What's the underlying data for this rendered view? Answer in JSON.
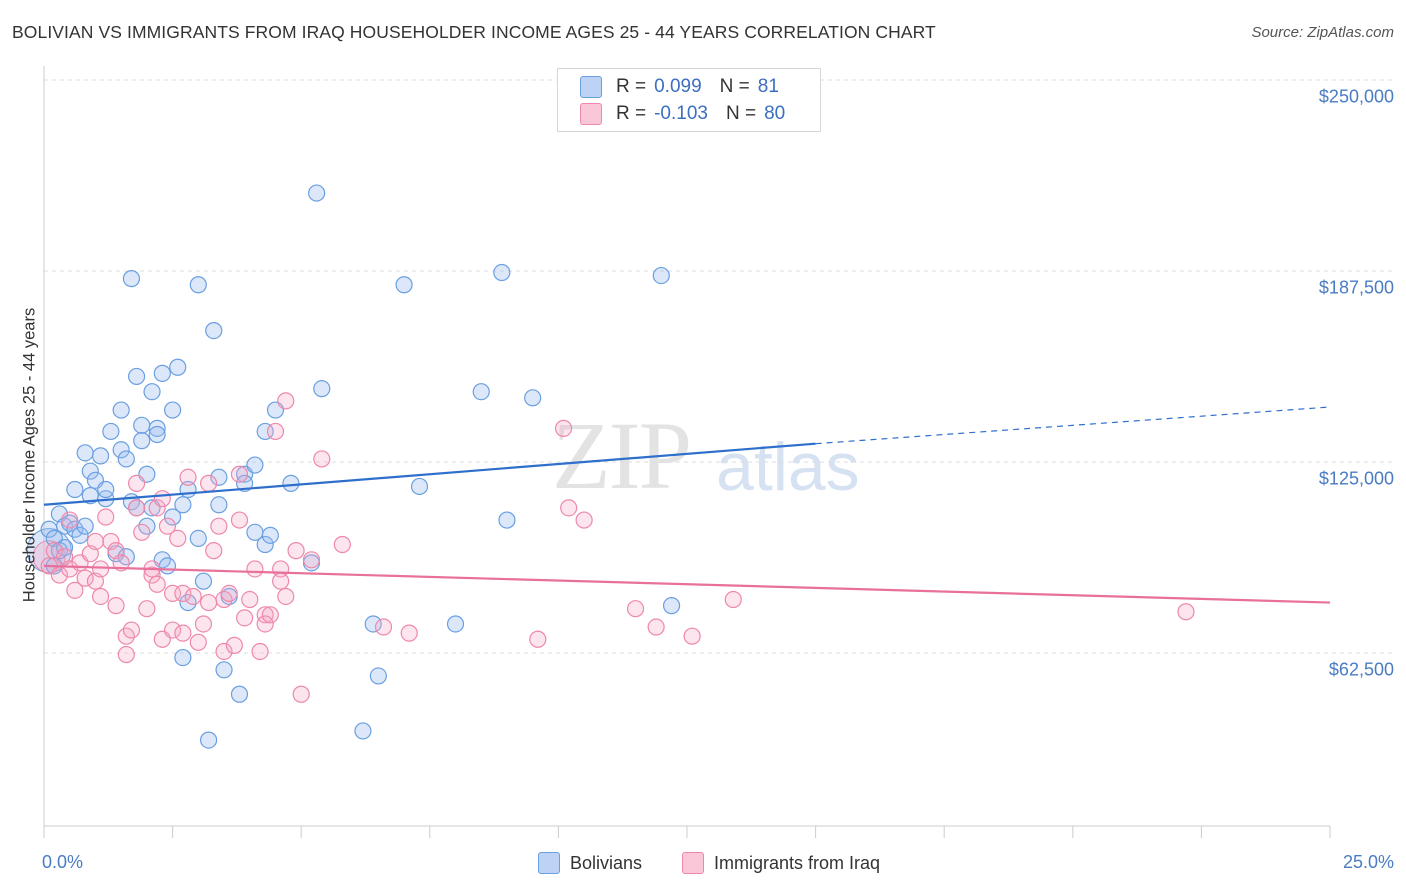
{
  "title": "BOLIVIAN VS IMMIGRANTS FROM IRAQ HOUSEHOLDER INCOME AGES 25 - 44 YEARS CORRELATION CHART",
  "source": "Source: ZipAtlas.com",
  "watermark": {
    "zip": "ZIP",
    "atlas": "atlas"
  },
  "legend": {
    "rows": [
      {
        "r_label": "R =",
        "r_value": "0.099",
        "n_label": "N =",
        "n_value": "81"
      },
      {
        "r_label": "R =",
        "r_value": "-0.103",
        "n_label": "N =",
        "n_value": "80"
      }
    ],
    "bottom": [
      "Bolivians",
      "Immigrants from Iraq"
    ]
  },
  "colors": {
    "blue": "#6a9fe0",
    "blue_line": "#2f6fcc",
    "pink": "#ee88aa",
    "pink_line": "#e8709a",
    "grid": "#dddddd"
  },
  "chart_data": {
    "type": "scatter",
    "title": "BOLIVIAN VS IMMIGRANTS FROM IRAQ HOUSEHOLDER INCOME AGES 25 - 44 YEARS CORRELATION CHART",
    "xlabel": "",
    "ylabel": "Householder Income Ages 25 - 44 years",
    "xlim": [
      0,
      25
    ],
    "ylim": [
      0,
      270000
    ],
    "x_tick_labels": [
      "0.0%",
      "25.0%"
    ],
    "y_ticks": [
      62500,
      125000,
      187500,
      250000
    ],
    "y_tick_labels": [
      "$62,500",
      "$125,000",
      "$187,500",
      "$250,000"
    ],
    "grid": true,
    "series": [
      {
        "name": "Bolivians",
        "r": 0.099,
        "n": 81,
        "trend": {
          "x": [
            0,
            15
          ],
          "y": [
            111000,
            131000
          ],
          "dashed_to": [
            25,
            143000
          ]
        },
        "points": [
          [
            0.1,
            103000
          ],
          [
            0.2,
            100000
          ],
          [
            0.3,
            108000
          ],
          [
            0.3,
            96000
          ],
          [
            0.4,
            104000
          ],
          [
            0.5,
            105000
          ],
          [
            0.6,
            116000
          ],
          [
            0.6,
            103000
          ],
          [
            0.7,
            101000
          ],
          [
            0.8,
            128000
          ],
          [
            0.9,
            114000
          ],
          [
            0.9,
            122000
          ],
          [
            1.0,
            119000
          ],
          [
            1.1,
            127000
          ],
          [
            1.2,
            113000
          ],
          [
            1.3,
            135000
          ],
          [
            1.4,
            95000
          ],
          [
            1.5,
            129000
          ],
          [
            1.5,
            142000
          ],
          [
            1.6,
            126000
          ],
          [
            1.7,
            112000
          ],
          [
            1.7,
            185000
          ],
          [
            1.8,
            153000
          ],
          [
            1.8,
            110000
          ],
          [
            1.9,
            137000
          ],
          [
            1.9,
            132000
          ],
          [
            2.0,
            121000
          ],
          [
            2.1,
            148000
          ],
          [
            2.1,
            110000
          ],
          [
            2.2,
            136000
          ],
          [
            2.2,
            134000
          ],
          [
            2.3,
            154000
          ],
          [
            2.3,
            93000
          ],
          [
            2.4,
            91000
          ],
          [
            2.5,
            142000
          ],
          [
            2.5,
            107000
          ],
          [
            2.6,
            156000
          ],
          [
            2.7,
            61000
          ],
          [
            2.7,
            111000
          ],
          [
            2.8,
            79000
          ],
          [
            2.8,
            116000
          ],
          [
            3.0,
            100000
          ],
          [
            3.0,
            183000
          ],
          [
            3.1,
            86000
          ],
          [
            3.2,
            34000
          ],
          [
            3.3,
            168000
          ],
          [
            3.4,
            111000
          ],
          [
            3.4,
            120000
          ],
          [
            3.5,
            57000
          ],
          [
            3.6,
            81000
          ],
          [
            3.8,
            49000
          ],
          [
            3.9,
            121000
          ],
          [
            3.9,
            118000
          ],
          [
            4.1,
            102000
          ],
          [
            4.1,
            124000
          ],
          [
            4.3,
            98000
          ],
          [
            4.3,
            135000
          ],
          [
            4.4,
            101000
          ],
          [
            4.5,
            142000
          ],
          [
            4.8,
            118000
          ],
          [
            5.2,
            92000
          ],
          [
            5.3,
            213000
          ],
          [
            5.4,
            149000
          ],
          [
            6.4,
            72000
          ],
          [
            6.5,
            55000
          ],
          [
            6.2,
            37000
          ],
          [
            7.0,
            183000
          ],
          [
            7.3,
            117000
          ],
          [
            8.0,
            72000
          ],
          [
            8.5,
            148000
          ],
          [
            8.9,
            187000
          ],
          [
            9.0,
            106000
          ],
          [
            9.5,
            146000
          ],
          [
            12.2,
            78000
          ],
          [
            12.0,
            186000
          ],
          [
            0.2,
            91000
          ],
          [
            0.4,
            97000
          ],
          [
            0.8,
            104000
          ],
          [
            1.2,
            116000
          ],
          [
            1.6,
            94000
          ],
          [
            2.0,
            104000
          ]
        ]
      },
      {
        "name": "Immigrants from Iraq",
        "r": -0.103,
        "n": 80,
        "trend": {
          "x": [
            0,
            25
          ],
          "y": [
            91000,
            79000
          ]
        },
        "points": [
          [
            0.1,
            91000
          ],
          [
            0.2,
            96000
          ],
          [
            0.3,
            88000
          ],
          [
            0.4,
            94000
          ],
          [
            0.5,
            106000
          ],
          [
            0.5,
            90000
          ],
          [
            0.6,
            83000
          ],
          [
            0.7,
            92000
          ],
          [
            0.8,
            87000
          ],
          [
            0.9,
            95000
          ],
          [
            1.0,
            99000
          ],
          [
            1.0,
            86000
          ],
          [
            1.1,
            90000
          ],
          [
            1.1,
            81000
          ],
          [
            1.2,
            107000
          ],
          [
            1.3,
            99000
          ],
          [
            1.4,
            96000
          ],
          [
            1.4,
            78000
          ],
          [
            1.5,
            92000
          ],
          [
            1.6,
            62000
          ],
          [
            1.6,
            68000
          ],
          [
            1.7,
            70000
          ],
          [
            1.8,
            118000
          ],
          [
            1.8,
            110000
          ],
          [
            1.9,
            102000
          ],
          [
            2.0,
            77000
          ],
          [
            2.1,
            88000
          ],
          [
            2.1,
            90000
          ],
          [
            2.2,
            85000
          ],
          [
            2.2,
            110000
          ],
          [
            2.3,
            113000
          ],
          [
            2.3,
            67000
          ],
          [
            2.4,
            104000
          ],
          [
            2.5,
            82000
          ],
          [
            2.5,
            70000
          ],
          [
            2.6,
            100000
          ],
          [
            2.7,
            82000
          ],
          [
            2.7,
            69000
          ],
          [
            2.8,
            120000
          ],
          [
            2.9,
            81000
          ],
          [
            3.0,
            66000
          ],
          [
            3.1,
            72000
          ],
          [
            3.2,
            79000
          ],
          [
            3.2,
            118000
          ],
          [
            3.3,
            96000
          ],
          [
            3.4,
            104000
          ],
          [
            3.5,
            80000
          ],
          [
            3.5,
            63000
          ],
          [
            3.6,
            82000
          ],
          [
            3.7,
            65000
          ],
          [
            3.8,
            121000
          ],
          [
            3.8,
            106000
          ],
          [
            3.9,
            74000
          ],
          [
            4.0,
            80000
          ],
          [
            4.1,
            90000
          ],
          [
            4.2,
            63000
          ],
          [
            4.3,
            75000
          ],
          [
            4.3,
            72000
          ],
          [
            4.4,
            75000
          ],
          [
            4.5,
            135000
          ],
          [
            4.6,
            90000
          ],
          [
            4.6,
            86000
          ],
          [
            4.7,
            81000
          ],
          [
            4.7,
            145000
          ],
          [
            4.9,
            96000
          ],
          [
            5.0,
            49000
          ],
          [
            5.2,
            93000
          ],
          [
            5.4,
            126000
          ],
          [
            5.8,
            98000
          ],
          [
            6.6,
            71000
          ],
          [
            7.1,
            69000
          ],
          [
            9.6,
            67000
          ],
          [
            10.1,
            136000
          ],
          [
            10.2,
            110000
          ],
          [
            10.5,
            106000
          ],
          [
            11.5,
            77000
          ],
          [
            11.9,
            71000
          ],
          [
            12.6,
            68000
          ],
          [
            13.4,
            80000
          ],
          [
            22.2,
            76000
          ]
        ]
      }
    ]
  }
}
